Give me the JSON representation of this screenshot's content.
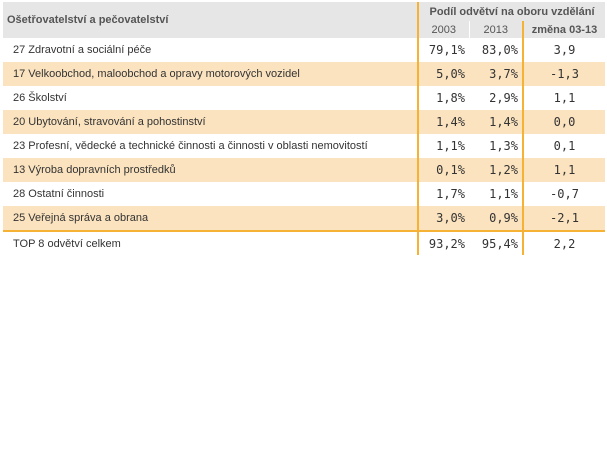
{
  "table": {
    "header": {
      "title": "Ošetřovatelství a pečovatelství",
      "group_label": "Podíl odvětví na oboru vzdělání",
      "col_2003": "2003",
      "col_2013": "2013",
      "col_change": "změna 03-13"
    },
    "rows": [
      {
        "name": "27 Zdravotní a sociální péče",
        "v2003": "79,1%",
        "v2013": "83,0%",
        "change": "3,9"
      },
      {
        "name": "17 Velkoobchod, maloobchod a opravy motorových vozidel",
        "v2003": "5,0%",
        "v2013": "3,7%",
        "change": "-1,3"
      },
      {
        "name": "26 Školství",
        "v2003": "1,8%",
        "v2013": "2,9%",
        "change": "1,1"
      },
      {
        "name": "20 Ubytování, stravování a pohostinství",
        "v2003": "1,4%",
        "v2013": "1,4%",
        "change": "0,0"
      },
      {
        "name": "23 Profesní, vědecké a technické činnosti a činnosti v oblasti nemovitostí",
        "v2003": "1,1%",
        "v2013": "1,3%",
        "change": "0,1"
      },
      {
        "name": "13 Výroba dopravních prostředků",
        "v2003": "0,1%",
        "v2013": "1,2%",
        "change": "1,1"
      },
      {
        "name": "28 Ostatní činnosti",
        "v2003": "1,7%",
        "v2013": "1,1%",
        "change": "-0,7"
      },
      {
        "name": "25 Veřejná správa a obrana",
        "v2003": "3,0%",
        "v2013": "0,9%",
        "change": "-2,1"
      }
    ],
    "total": {
      "name": "TOP 8 odvětví celkem",
      "v2003": "93,2%",
      "v2013": "95,4%",
      "change": "2,2"
    }
  },
  "colors": {
    "accent_border": "#f5b235",
    "row_alt": "#fbe3bf",
    "header_bg": "#e6e6e6"
  }
}
